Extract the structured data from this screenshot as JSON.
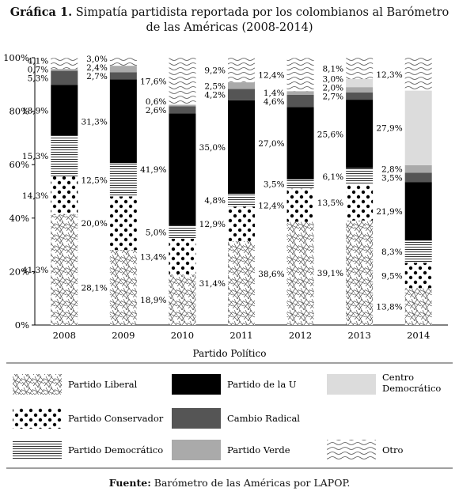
{
  "title_bold": "Gráfica 1.",
  "title_line1": "Simpatía partidista reportada por los colombianos al Barómetro",
  "title_line2": "de las Américas (2008-2014)",
  "source_bold": "Fuente:",
  "source_text": "Barómetro de las Américas por LAPOP.",
  "chart_data": {
    "type": "bar",
    "stacked": true,
    "xlabel": "Partido Político",
    "ylabel": "",
    "ylim": [
      0,
      100
    ],
    "yticks": [
      "0%",
      "20%",
      "40%",
      "60%",
      "80%",
      "100%"
    ],
    "categories": [
      "2008",
      "2009",
      "2010",
      "2011",
      "2012",
      "2013",
      "2014"
    ],
    "series": [
      {
        "name": "Partido Liberal",
        "pattern": "crosshatch",
        "values": [
          41.3,
          28.1,
          18.9,
          31.4,
          38.6,
          39.1,
          13.8
        ],
        "labels": [
          "41,3%",
          "28,1%",
          "18,9%",
          "31,4%",
          "38,6%",
          "39,1%",
          "13,8%"
        ]
      },
      {
        "name": "Partido Conservador",
        "pattern": "dots",
        "values": [
          14.3,
          20.0,
          13.4,
          12.9,
          12.4,
          13.5,
          9.5
        ],
        "labels": [
          "14,3%",
          "20,0%",
          "13,4%",
          "12,9%",
          "12,4%",
          "13,5%",
          "9,5%"
        ]
      },
      {
        "name": "Partido Democrático",
        "pattern": "hlines",
        "values": [
          15.3,
          12.5,
          5.0,
          4.8,
          3.5,
          6.1,
          8.3
        ],
        "labels": [
          "15,3%",
          "12,5%",
          "5,0%",
          "4,8%",
          "3,5%",
          "6,1%",
          "8,3%"
        ]
      },
      {
        "name": "Partido de la U",
        "pattern": "solid",
        "color": "#000000",
        "values": [
          18.9,
          31.3,
          41.9,
          35.0,
          27.0,
          25.6,
          21.9
        ],
        "labels": [
          "18,9%",
          "31,3%",
          "41,9%",
          "35,0%",
          "27,0%",
          "25,6%",
          "21,9%"
        ]
      },
      {
        "name": "Cambio Radical",
        "pattern": "solid",
        "color": "#555555",
        "values": [
          5.3,
          2.7,
          2.6,
          4.2,
          4.6,
          2.7,
          3.5
        ],
        "labels": [
          "5,3%",
          "2,7%",
          "2,6%",
          "4,2%",
          "4,6%",
          "2,7%",
          "3,5%"
        ]
      },
      {
        "name": "Partido Verde",
        "pattern": "solid",
        "color": "#aaaaaa",
        "values": [
          0.7,
          2.4,
          0.6,
          2.5,
          1.4,
          2.0,
          2.8
        ],
        "labels": [
          "0,7%",
          "2,4%",
          "0,6%",
          "2,5%",
          "1,4%",
          "2,0%",
          "2,8%"
        ]
      },
      {
        "name": "Centro Democrático",
        "pattern": "solid",
        "color": "#dcdcdc",
        "values": [
          0,
          0,
          0,
          0,
          0,
          3.0,
          27.9
        ],
        "labels": [
          "",
          "",
          "",
          "",
          "",
          "3,0%",
          "27,9%"
        ]
      },
      {
        "name": "Otro",
        "pattern": "waves",
        "values": [
          4.1,
          3.0,
          17.6,
          9.2,
          12.4,
          8.1,
          12.3
        ],
        "labels": [
          "4,1%",
          "3,0%",
          "17,6%",
          "9,2%",
          "12,4%",
          "8,1%",
          "12,3%"
        ]
      }
    ],
    "legend": {
      "placement": "bottom",
      "rows": [
        [
          "Partido Liberal",
          "Partido de la U",
          "Centro Democrático"
        ],
        [
          "Partido Conservador",
          "Cambio Radical",
          ""
        ],
        [
          "Partido Democrático",
          "Partido Verde",
          "Otro"
        ]
      ]
    }
  }
}
